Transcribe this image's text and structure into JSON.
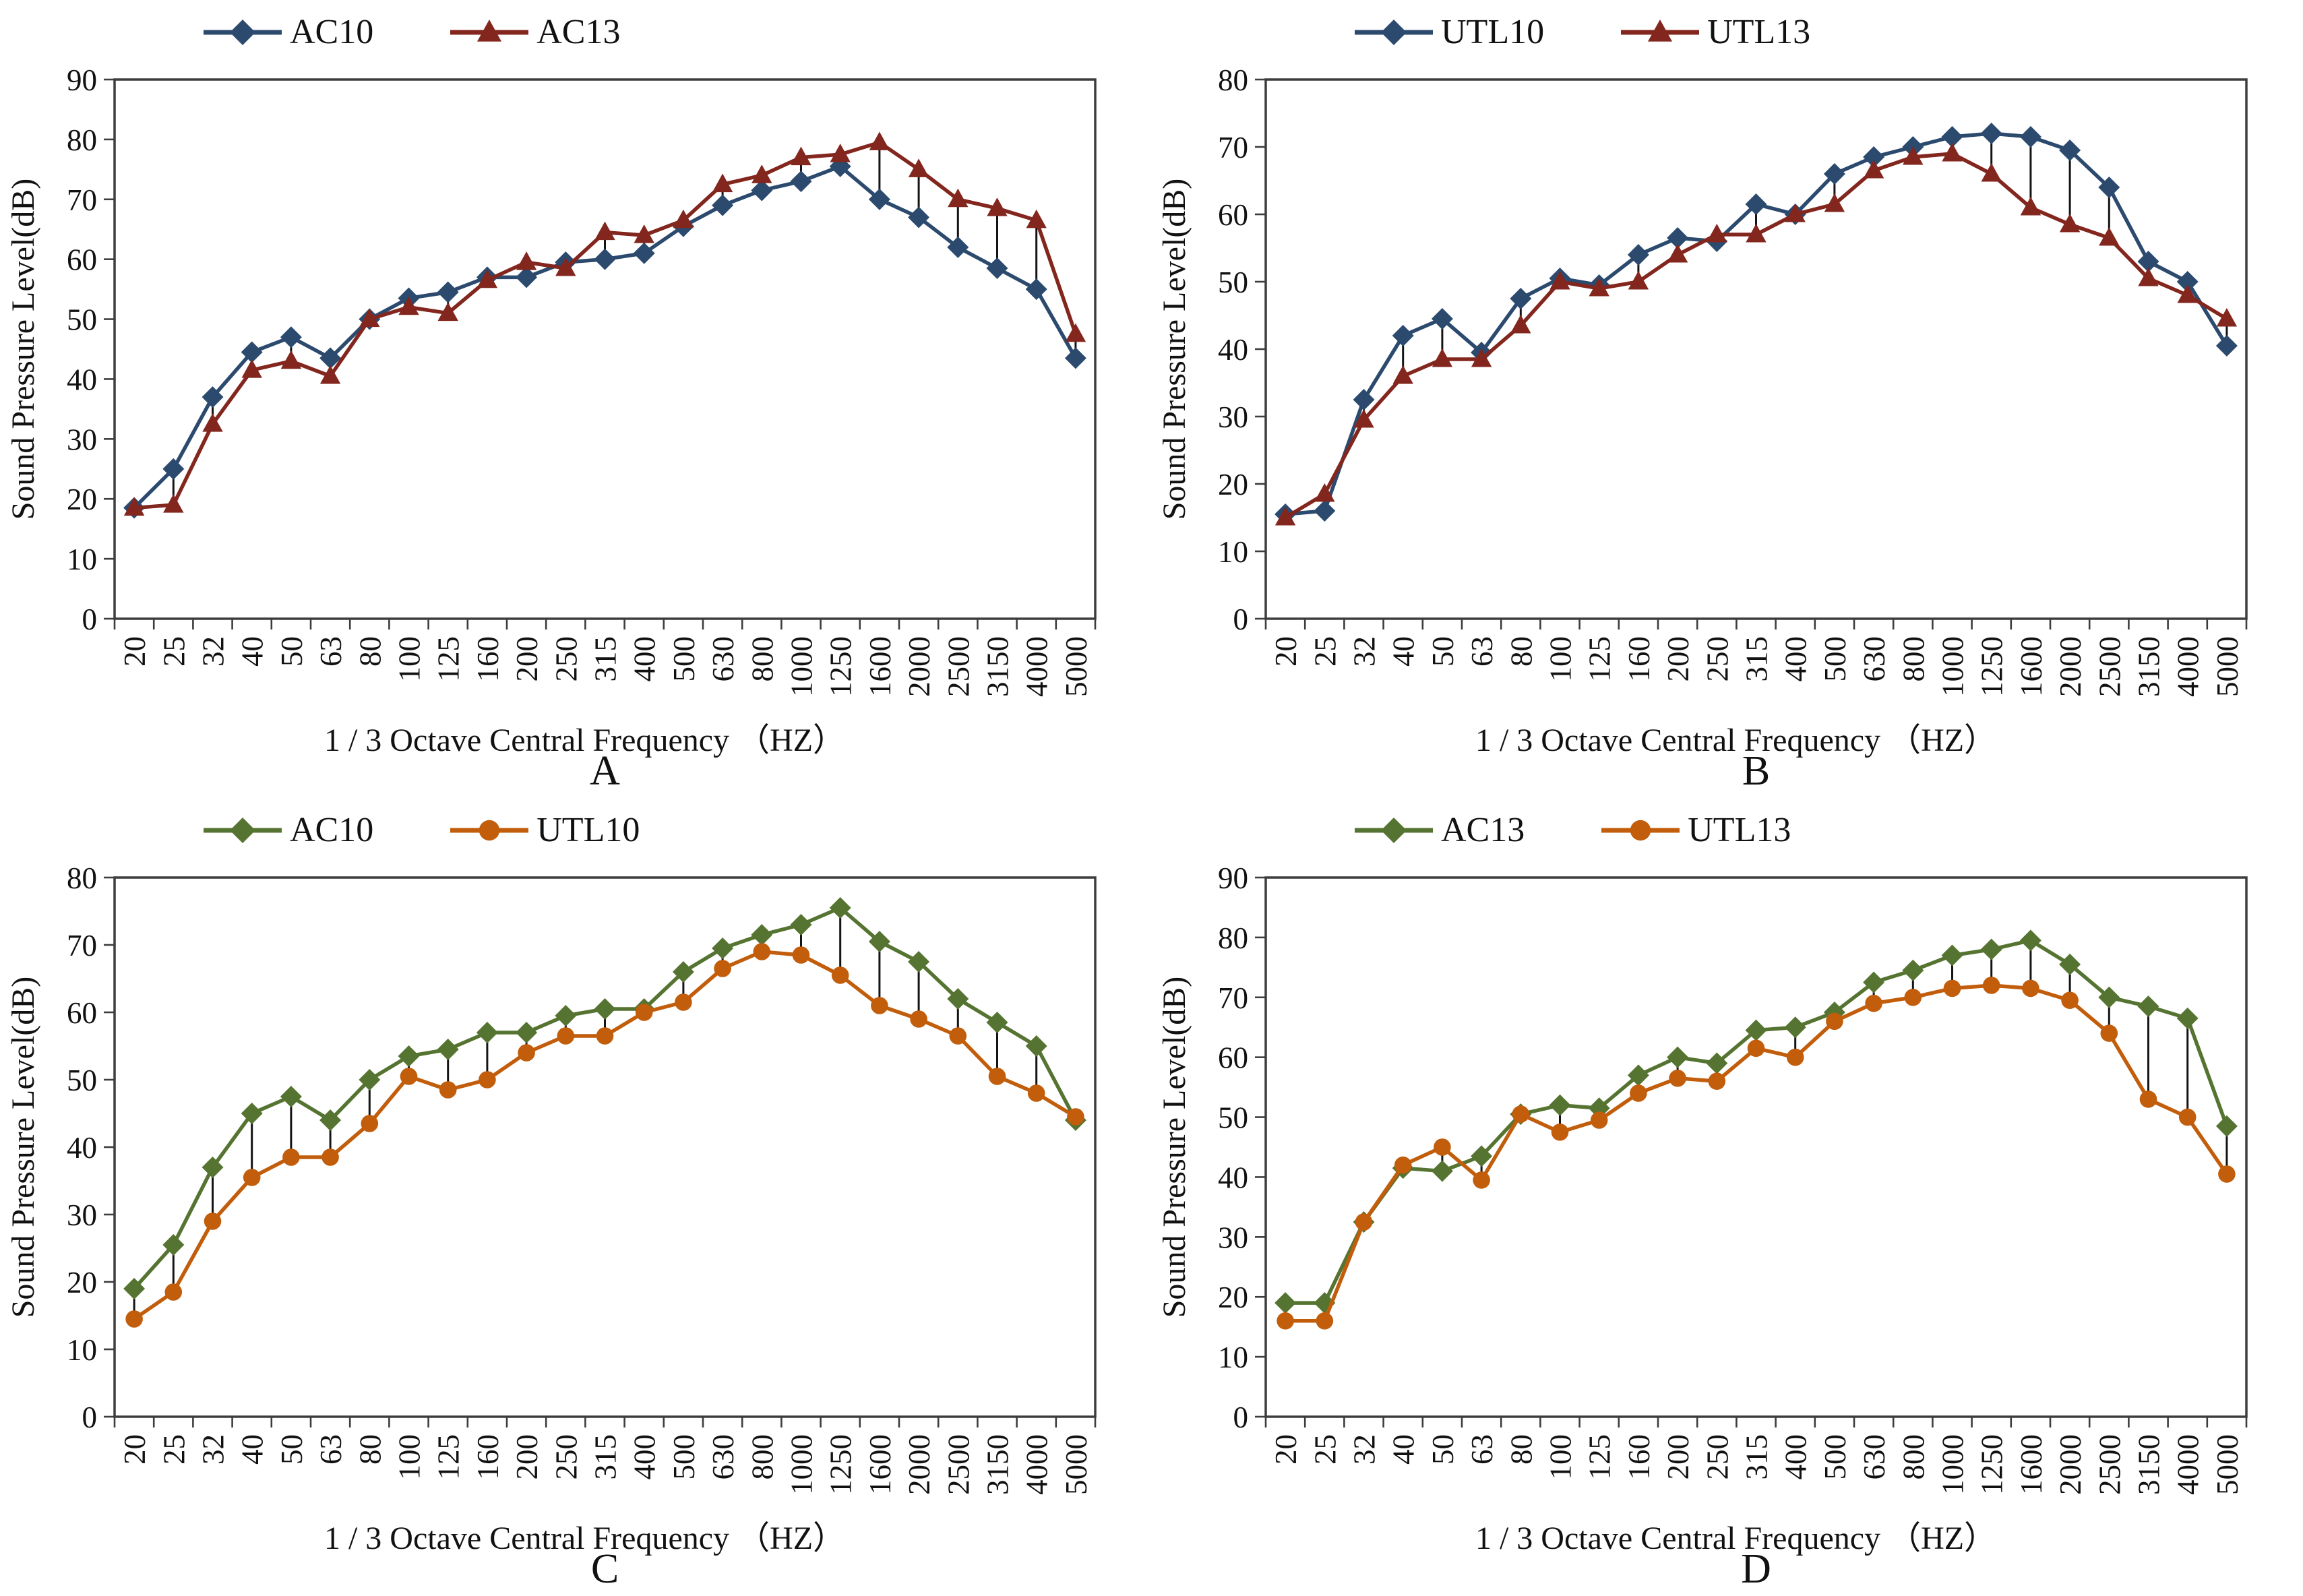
{
  "page": {
    "background": "#ffffff"
  },
  "style": {
    "axis_color": "#3d3d3d",
    "text_color": "#111111",
    "connector_color": "#141414"
  },
  "chart_data": [
    {
      "type": "line",
      "panel_label": "A",
      "xlabel": "1 / 3 Octave Central Frequency （HZ）",
      "ylabel": "Sound Pressure Level(dB)",
      "ylim": [
        0,
        90
      ],
      "ytick_step": 10,
      "grid": false,
      "legend_position": "top",
      "connectors": true,
      "categories": [
        "20",
        "25",
        "32",
        "40",
        "50",
        "63",
        "80",
        "100",
        "125",
        "160",
        "200",
        "250",
        "315",
        "400",
        "500",
        "630",
        "800",
        "1000",
        "1250",
        "1600",
        "2000",
        "2500",
        "3150",
        "4000",
        "5000"
      ],
      "series": [
        {
          "name": "AC10",
          "marker": "diamond",
          "color": "#2B4A6E",
          "values": [
            18.5,
            25,
            37,
            44.5,
            47,
            43.5,
            50,
            53.5,
            54.5,
            57,
            57,
            59.5,
            60,
            61,
            65.5,
            69,
            71.5,
            73,
            75.5,
            70,
            67,
            62,
            58.5,
            55,
            43.5
          ]
        },
        {
          "name": "AC13",
          "marker": "triangle",
          "color": "#82261E",
          "values": [
            18.5,
            19,
            32.5,
            41.5,
            43,
            40.5,
            50,
            52,
            51,
            56.5,
            59.5,
            58.5,
            64.5,
            64,
            66.5,
            72.5,
            74,
            77,
            77.5,
            79.5,
            75,
            70,
            68.5,
            66.5,
            47.5
          ]
        }
      ]
    },
    {
      "type": "line",
      "panel_label": "B",
      "xlabel": "1 / 3 Octave Central Frequency （HZ）",
      "ylabel": "Sound Pressure Level(dB)",
      "ylim": [
        0,
        80
      ],
      "ytick_step": 10,
      "grid": false,
      "legend_position": "top",
      "connectors": true,
      "categories": [
        "20",
        "25",
        "32",
        "40",
        "50",
        "63",
        "80",
        "100",
        "125",
        "160",
        "200",
        "250",
        "315",
        "400",
        "500",
        "630",
        "800",
        "1000",
        "1250",
        "1600",
        "2000",
        "2500",
        "3150",
        "4000",
        "5000"
      ],
      "series": [
        {
          "name": "UTL10",
          "marker": "diamond",
          "color": "#2B4A6E",
          "values": [
            15.5,
            16,
            32.5,
            42,
            44.5,
            39.5,
            47.5,
            50.5,
            49.5,
            54,
            56.5,
            56,
            61.5,
            60,
            66,
            68.5,
            70,
            71.5,
            72,
            71.5,
            69.5,
            64,
            53,
            50,
            40.5
          ]
        },
        {
          "name": "UTL13",
          "marker": "triangle",
          "color": "#82261E",
          "values": [
            15,
            18.5,
            29.5,
            36,
            38.5,
            38.5,
            43.5,
            50,
            49,
            50,
            54,
            57,
            57,
            60,
            61.5,
            66.5,
            68.5,
            69,
            66,
            61,
            58.5,
            56.5,
            50.5,
            48,
            44.5
          ]
        }
      ]
    },
    {
      "type": "line",
      "panel_label": "C",
      "xlabel": "1 / 3 Octave Central Frequency （HZ）",
      "ylabel": "Sound Pressure Level(dB)",
      "ylim": [
        0,
        80
      ],
      "ytick_step": 10,
      "grid": false,
      "legend_position": "top",
      "connectors": true,
      "categories": [
        "20",
        "25",
        "32",
        "40",
        "50",
        "63",
        "80",
        "100",
        "125",
        "160",
        "200",
        "250",
        "315",
        "400",
        "500",
        "630",
        "800",
        "1000",
        "1250",
        "1600",
        "2000",
        "2500",
        "3150",
        "4000",
        "5000"
      ],
      "series": [
        {
          "name": "AC10",
          "marker": "diamond",
          "color": "#567431",
          "values": [
            19,
            25.5,
            37,
            45,
            47.5,
            44,
            50,
            53.5,
            54.5,
            57,
            57,
            59.5,
            60.5,
            60.5,
            66,
            69.5,
            71.5,
            73,
            75.5,
            70.5,
            67.5,
            62,
            58.5,
            55,
            44
          ]
        },
        {
          "name": "UTL10",
          "marker": "circle",
          "color": "#C15D0B",
          "values": [
            14.5,
            18.5,
            29,
            35.5,
            38.5,
            38.5,
            43.5,
            50.5,
            48.5,
            50,
            54,
            56.5,
            56.5,
            60,
            61.5,
            66.5,
            69,
            68.5,
            65.5,
            61,
            59,
            56.5,
            50.5,
            48,
            44.5
          ]
        }
      ]
    },
    {
      "type": "line",
      "panel_label": "D",
      "xlabel": "1 / 3 Octave Central Frequency （HZ）",
      "ylabel": "Sound Pressure Level(dB)",
      "ylim": [
        0,
        90
      ],
      "ytick_step": 10,
      "grid": false,
      "legend_position": "top",
      "connectors": true,
      "categories": [
        "20",
        "25",
        "32",
        "40",
        "50",
        "63",
        "80",
        "100",
        "125",
        "160",
        "200",
        "250",
        "315",
        "400",
        "500",
        "630",
        "800",
        "1000",
        "1250",
        "1600",
        "2000",
        "2500",
        "3150",
        "4000",
        "5000"
      ],
      "series": [
        {
          "name": "AC13",
          "marker": "diamond",
          "color": "#567431",
          "values": [
            19,
            19,
            32.5,
            41.5,
            41,
            43.5,
            50.5,
            52,
            51.5,
            57,
            60,
            59,
            64.5,
            65,
            67.5,
            72.5,
            74.5,
            77,
            78,
            79.5,
            75.5,
            70,
            68.5,
            66.5,
            48.5
          ]
        },
        {
          "name": "UTL13",
          "marker": "circle",
          "color": "#C15D0B",
          "values": [
            16,
            16,
            32.5,
            42,
            45,
            39.5,
            50.5,
            47.5,
            49.5,
            54,
            56.5,
            56,
            61.5,
            60,
            66,
            69,
            70,
            71.5,
            72,
            71.5,
            69.5,
            64,
            53,
            50,
            40.5
          ]
        }
      ]
    }
  ]
}
